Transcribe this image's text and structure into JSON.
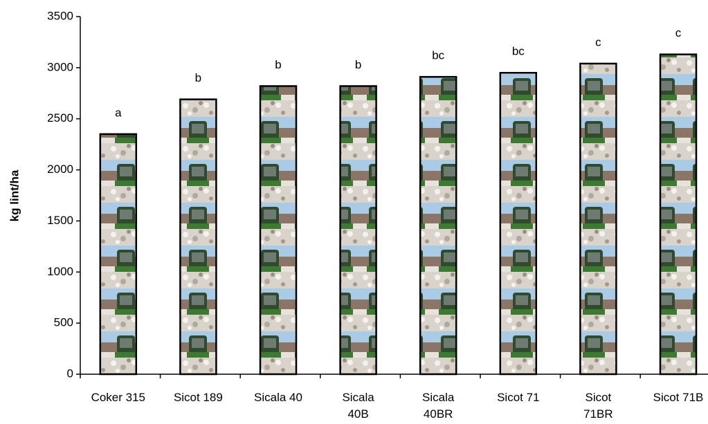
{
  "chart_data": {
    "type": "bar",
    "y_label": "kg lint/ha",
    "categories": [
      "Coker 315",
      "Sicot 189",
      "Sicala 40",
      "Sicala\n40B",
      "Sicala\n40BR",
      "Sicot 71",
      "Sicot\n71BR",
      "Sicot 71B"
    ],
    "values": [
      2350,
      2690,
      2820,
      2820,
      2910,
      2950,
      3040,
      3130
    ],
    "letters": [
      "a",
      "b",
      "b",
      "b",
      "bc",
      "bc",
      "c",
      "c"
    ],
    "ylim": [
      0,
      3500
    ],
    "yticks": [
      0,
      500,
      1000,
      1500,
      2000,
      2500,
      3000,
      3500
    ]
  }
}
